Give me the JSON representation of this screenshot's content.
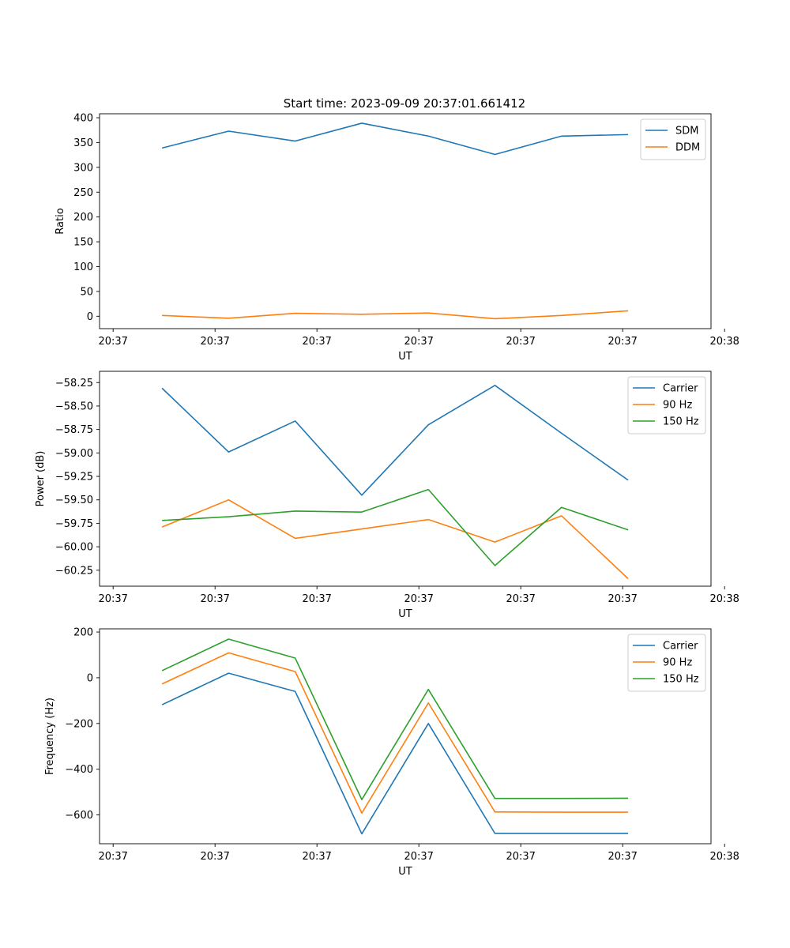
{
  "figure_title": "Start time: 2023-09-09 20:37:01.661412",
  "chart_data": [
    {
      "type": "line",
      "title": "Start time: 2023-09-09 20:37:01.661412",
      "xlabel": "UT",
      "ylabel": "Ratio",
      "xlim": [
        0,
        9
      ],
      "ylim": [
        -25,
        408
      ],
      "yticks": [
        0,
        50,
        100,
        150,
        200,
        250,
        300,
        350,
        400
      ],
      "ytick_labels": [
        "0",
        "50",
        "100",
        "150",
        "200",
        "250",
        "300",
        "350",
        "400"
      ],
      "xticks": [
        0.2,
        1.7,
        3.2,
        4.7,
        6.2,
        7.7,
        9.2
      ],
      "xtick_labels": [
        "20:37",
        "20:37",
        "20:37",
        "20:37",
        "20:37",
        "20:37",
        "20:38"
      ],
      "grid": false,
      "legend_position": "upper-right",
      "x": [
        0.92,
        1.9,
        2.88,
        3.86,
        4.84,
        5.82,
        6.8,
        7.78
      ],
      "series": [
        {
          "name": "SDM",
          "color": "#1f77b4",
          "values": [
            339,
            373,
            353,
            389,
            363,
            326,
            363,
            366
          ]
        },
        {
          "name": "DDM",
          "color": "#ff7f0e",
          "values": [
            1.5,
            -4,
            6,
            4,
            6.5,
            -5,
            1.5,
            11
          ]
        }
      ]
    },
    {
      "type": "line",
      "title": "",
      "xlabel": "UT",
      "ylabel": "Power (dB)",
      "xlim": [
        0,
        9
      ],
      "ylim": [
        -60.42,
        -58.13
      ],
      "yticks": [
        -60.25,
        -60.0,
        -59.75,
        -59.5,
        -59.25,
        -59.0,
        -58.75,
        -58.5,
        -58.25
      ],
      "ytick_labels": [
        "−60.25",
        "−60.00",
        "−59.75",
        "−59.50",
        "−59.25",
        "−59.00",
        "−58.75",
        "−58.50",
        "−58.25"
      ],
      "xticks": [
        0.2,
        1.7,
        3.2,
        4.7,
        6.2,
        7.7,
        9.2
      ],
      "xtick_labels": [
        "20:37",
        "20:37",
        "20:37",
        "20:37",
        "20:37",
        "20:37",
        "20:38"
      ],
      "grid": false,
      "legend_position": "upper-right",
      "x": [
        0.92,
        1.9,
        2.88,
        3.86,
        4.84,
        5.82,
        6.8,
        7.78
      ],
      "series": [
        {
          "name": "Carrier",
          "color": "#1f77b4",
          "values": [
            -58.31,
            -58.99,
            -58.66,
            -59.45,
            -58.7,
            -58.28,
            -58.79,
            -59.29
          ]
        },
        {
          "name": "90 Hz",
          "color": "#ff7f0e",
          "values": [
            -59.79,
            -59.5,
            -59.91,
            -59.81,
            -59.71,
            -59.95,
            -59.67,
            -60.34
          ]
        },
        {
          "name": "150 Hz",
          "color": "#2ca02c",
          "values": [
            -59.72,
            -59.68,
            -59.62,
            -59.63,
            -59.39,
            -60.2,
            -59.58,
            -59.82
          ]
        }
      ]
    },
    {
      "type": "line",
      "title": "",
      "xlabel": "UT",
      "ylabel": "Frequency (Hz)",
      "xlim": [
        0,
        9
      ],
      "ylim": [
        -726,
        214
      ],
      "yticks": [
        -600,
        -400,
        -200,
        0,
        200
      ],
      "ytick_labels": [
        "−600",
        "−400",
        "−200",
        "0",
        "200"
      ],
      "xticks": [
        0.2,
        1.7,
        3.2,
        4.7,
        6.2,
        7.7,
        9.2
      ],
      "xtick_labels": [
        "20:37",
        "20:37",
        "20:37",
        "20:37",
        "20:37",
        "20:37",
        "20:38"
      ],
      "grid": false,
      "legend_position": "upper-right",
      "x": [
        0.92,
        1.9,
        2.88,
        3.86,
        4.84,
        5.82,
        6.8,
        7.78
      ],
      "series": [
        {
          "name": "Carrier",
          "color": "#1f77b4",
          "values": [
            -118,
            20,
            -60,
            -683,
            -200,
            -681,
            -681,
            -681
          ]
        },
        {
          "name": "90 Hz",
          "color": "#ff7f0e",
          "values": [
            -27,
            109,
            27,
            -592,
            -110,
            -587,
            -588,
            -588
          ]
        },
        {
          "name": "150 Hz",
          "color": "#2ca02c",
          "values": [
            31,
            169,
            86,
            -533,
            -51,
            -528,
            -528,
            -527
          ]
        }
      ]
    }
  ]
}
